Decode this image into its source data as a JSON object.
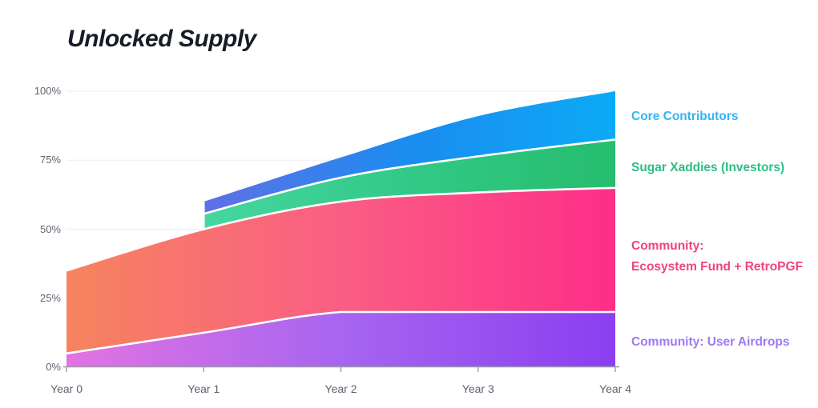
{
  "title": "Unlocked Supply",
  "chart_data": {
    "type": "area",
    "stacked": true,
    "title": "Unlocked Supply",
    "x_categories": [
      "Year 0",
      "Year 1",
      "Year 2",
      "Year 3",
      "Year 4"
    ],
    "y_tick_labels": [
      "0%",
      "25%",
      "50%",
      "75%",
      "100%"
    ],
    "y_tick_values": [
      0,
      25,
      50,
      75,
      100
    ],
    "ylim": [
      0,
      100
    ],
    "grid": true,
    "legend_position": "right",
    "series": [
      {
        "id": "airdrops",
        "name": "Community: User Airdrops",
        "unlocked_pct": [
          5,
          12.5,
          20,
          20,
          20
        ],
        "cumulative_top": [
          5,
          12.5,
          20,
          20,
          20
        ],
        "base": [
          0,
          0,
          0,
          0,
          0
        ],
        "x_start_index": 0,
        "gradient": [
          "#e273e2",
          "#a765f0",
          "#8a3ff0"
        ]
      },
      {
        "id": "ecosystem",
        "name": "Community: Ecosystem Fund + RetroPGF",
        "unlocked_pct": [
          30,
          37.5,
          40,
          43.3,
          45
        ],
        "cumulative_top": [
          35,
          50,
          60,
          63.3,
          65
        ],
        "base": [
          5,
          12.5,
          20,
          20,
          20
        ],
        "x_start_index": 0,
        "gradient": [
          "#f6845e",
          "#fa5e84",
          "#fd2e88"
        ]
      },
      {
        "id": "investors",
        "name": "Sugar Xaddies (Investors)",
        "unlocked_pct": [
          0,
          5.6,
          8.7,
          13.1,
          17.5
        ],
        "cumulative_top": [
          55.6,
          68.7,
          76.4,
          82.5
        ],
        "base": [
          50,
          60,
          63.3,
          65
        ],
        "x_start_index": 1,
        "gradient": [
          "#46d6a0",
          "#32c987",
          "#26bd6e"
        ]
      },
      {
        "id": "core",
        "name": "Core Contributors",
        "unlocked_pct": [
          0,
          4.4,
          7.3,
          14.6,
          17.5
        ],
        "cumulative_top": [
          60,
          76,
          91,
          100
        ],
        "base": [
          55.6,
          68.7,
          76.4,
          82.5
        ],
        "x_start_index": 1,
        "gradient": [
          "#6070e6",
          "#1b8cf0",
          "#0caaf5"
        ]
      }
    ],
    "colors": {
      "grid_line": "#edeef2",
      "axis_line": "#989da6",
      "tick_label": "#5d6370",
      "separator": "#ffffff",
      "title_text": "#171c26"
    }
  },
  "legend": {
    "core": {
      "label": "Core Contributors",
      "color": "#35b4f2"
    },
    "investors": {
      "label": "Sugar Xaddies (Investors)",
      "color": "#2cbe85"
    },
    "community": {
      "line1": "Community:",
      "line2": "Ecosystem Fund + RetroPGF",
      "color": "#f04380"
    },
    "airdrops": {
      "label": "Community: User Airdrops",
      "color": "#9e7bf2"
    }
  }
}
